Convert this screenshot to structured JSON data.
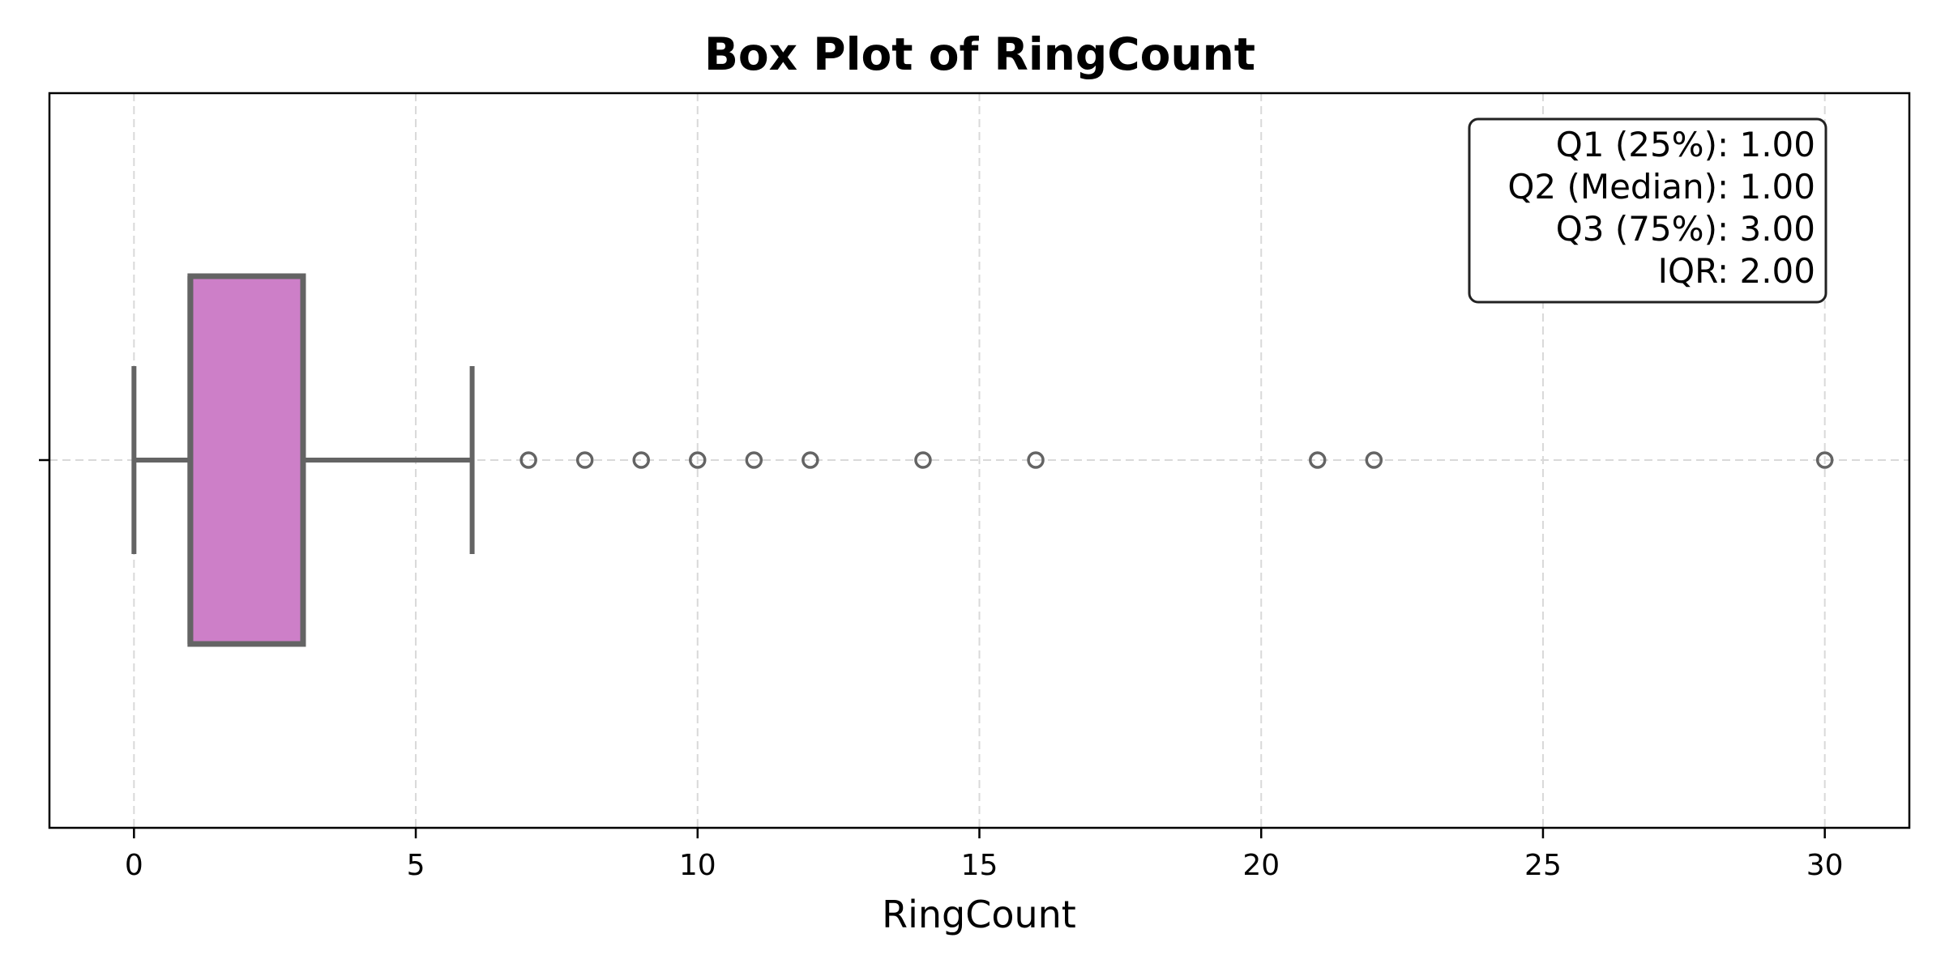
{
  "chart_data": {
    "type": "box",
    "orientation": "horizontal",
    "title": "Box Plot of RingCount",
    "xlabel": "RingCount",
    "ylabel": "",
    "xlim": [
      -1.5,
      31.5
    ],
    "xticks": [
      0,
      5,
      10,
      15,
      20,
      25,
      30
    ],
    "xtick_labels": [
      "0",
      "5",
      "10",
      "15",
      "20",
      "25",
      "30"
    ],
    "grid": true,
    "box": {
      "whisker_low": 0,
      "q1": 1,
      "median": 1,
      "q3": 3,
      "whisker_high": 6,
      "outliers": [
        7,
        8,
        9,
        10,
        11,
        12,
        14,
        16,
        21,
        22,
        30
      ]
    },
    "colors": {
      "box_fill": "#cd7fc8",
      "box_edge": "#646464",
      "grid": "#d9d9d9"
    },
    "stats_box": {
      "placement": "top-right",
      "lines": [
        "Q1 (25%): 1.00",
        "Q2 (Median): 1.00",
        "Q3 (75%): 3.00",
        "IQR: 2.00"
      ]
    }
  }
}
